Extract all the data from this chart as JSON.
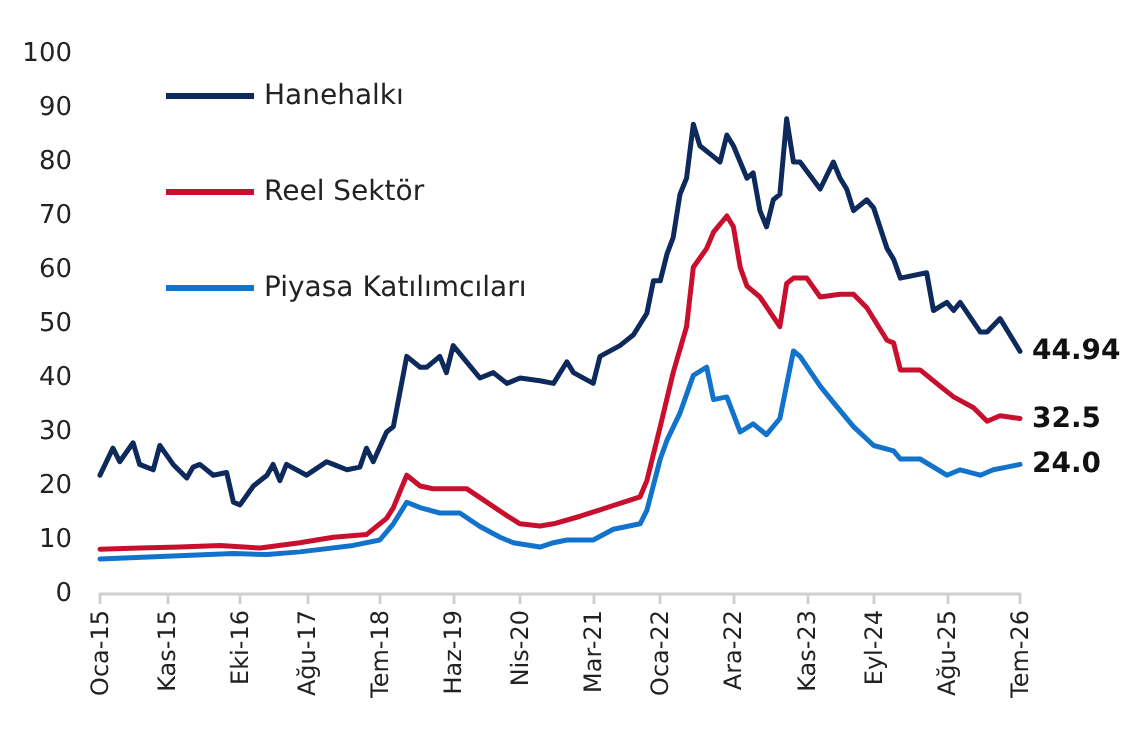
{
  "chart_data": {
    "type": "line",
    "xlim": [
      "2015-01",
      "2026-07"
    ],
    "xticks": [
      {
        "value": "2015-01",
        "label": "Oca-15"
      },
      {
        "value": "2015-11",
        "label": "Kas-15"
      },
      {
        "value": "2016-10",
        "label": "Eki-16"
      },
      {
        "value": "2017-08",
        "label": "Ağu-17"
      },
      {
        "value": "2018-07",
        "label": "Tem-18"
      },
      {
        "value": "2019-06",
        "label": "Haz-19"
      },
      {
        "value": "2020-04",
        "label": "Nis-20"
      },
      {
        "value": "2021-03",
        "label": "Mar-21"
      },
      {
        "value": "2022-01",
        "label": "Oca-22"
      },
      {
        "value": "2022-12",
        "label": "Ara-22"
      },
      {
        "value": "2023-11",
        "label": "Kas-23"
      },
      {
        "value": "2024-09",
        "label": "Eyl-24"
      },
      {
        "value": "2025-08",
        "label": "Ağu-25"
      },
      {
        "value": "2026-07",
        "label": "Tem-26"
      }
    ],
    "ylim": [
      0,
      100
    ],
    "yticks": [
      0,
      10,
      20,
      30,
      40,
      50,
      60,
      70,
      80,
      90,
      100
    ],
    "grid": false,
    "legend": "top left",
    "marker": "none",
    "line_style": "solid",
    "series": [
      {
        "name": "Hanehalkı",
        "color": "#0e2a5c",
        "x": [
          "2015-01",
          "2015-03",
          "2015-04",
          "2015-06",
          "2015-07",
          "2015-08",
          "2015-09",
          "2015-10",
          "2015-12",
          "2016-02",
          "2016-03",
          "2016-04",
          "2016-06",
          "2016-08",
          "2016-09",
          "2016-10",
          "2016-12",
          "2017-02",
          "2017-03",
          "2017-04",
          "2017-05",
          "2017-08",
          "2017-11",
          "2017-12",
          "2018-02",
          "2018-04",
          "2018-05",
          "2018-06",
          "2018-08",
          "2018-09",
          "2018-11",
          "2019-01",
          "2019-02",
          "2019-04",
          "2019-05",
          "2019-06",
          "2019-08",
          "2019-10",
          "2019-12",
          "2020-02",
          "2020-04",
          "2020-07",
          "2020-09",
          "2020-11",
          "2020-12",
          "2021-03",
          "2021-04",
          "2021-07",
          "2021-09",
          "2021-11",
          "2021-12",
          "2022-01",
          "2022-02",
          "2022-03",
          "2022-04",
          "2022-05",
          "2022-06",
          "2022-07",
          "2022-09",
          "2022-10",
          "2022-11",
          "2022-12",
          "2023-02",
          "2023-03",
          "2023-04",
          "2023-05",
          "2023-06",
          "2023-07",
          "2023-08",
          "2023-09",
          "2023-10",
          "2024-01",
          "2024-03",
          "2024-04",
          "2024-05",
          "2024-06",
          "2024-08",
          "2024-09",
          "2024-11",
          "2024-12",
          "2025-01",
          "2025-05",
          "2025-06",
          "2025-08",
          "2025-09",
          "2025-10",
          "2026-01",
          "2026-02",
          "2026-04",
          "2026-07"
        ],
        "values": [
          22,
          27,
          24.5,
          28,
          24,
          23.5,
          23,
          27.5,
          24,
          21.5,
          23.5,
          24,
          22,
          22.5,
          17,
          16.5,
          20,
          22,
          24,
          21,
          24,
          22,
          24.5,
          24,
          23,
          23.5,
          27,
          24.5,
          30,
          31,
          44,
          42,
          42,
          44,
          41,
          46,
          43,
          40,
          41,
          39,
          40,
          39.5,
          39,
          43,
          41,
          39,
          44,
          46,
          48,
          52,
          58,
          58,
          63,
          66,
          74,
          77,
          87,
          83,
          81,
          80,
          85,
          83,
          77,
          78,
          71,
          68,
          73,
          74,
          88,
          80,
          80,
          75,
          80,
          77,
          75,
          71,
          73,
          71.5,
          64,
          62,
          58.5,
          59.5,
          52.5,
          54,
          52.5,
          54,
          48.5,
          48.5,
          51,
          44.94
        ]
      },
      {
        "name": "Reel Sektör",
        "color": "#c8102e",
        "x": [
          "2015-01",
          "2015-07",
          "2016-01",
          "2016-07",
          "2017-01",
          "2017-07",
          "2017-12",
          "2018-05",
          "2018-08",
          "2018-09",
          "2018-11",
          "2019-01",
          "2019-03",
          "2019-08",
          "2019-11",
          "2020-02",
          "2020-04",
          "2020-07",
          "2020-09",
          "2021-01",
          "2021-04",
          "2021-07",
          "2021-10",
          "2021-11",
          "2022-01",
          "2022-03",
          "2022-05",
          "2022-06",
          "2022-08",
          "2022-09",
          "2022-11",
          "2022-12",
          "2023-01",
          "2023-02",
          "2023-04",
          "2023-07",
          "2023-08",
          "2023-09",
          "2023-11",
          "2024-01",
          "2024-04",
          "2024-06",
          "2024-08",
          "2024-11",
          "2024-12",
          "2025-01",
          "2025-04",
          "2025-07",
          "2025-09",
          "2025-12",
          "2026-02",
          "2026-04",
          "2026-07"
        ],
        "values": [
          8.3,
          8.5,
          8.7,
          9,
          8.5,
          9.5,
          10.5,
          11,
          14,
          16,
          22,
          20,
          19.5,
          19.5,
          17,
          14.5,
          13,
          12.6,
          13,
          14.4,
          15.6,
          16.8,
          18,
          21,
          31,
          41,
          49.5,
          60.5,
          64,
          67,
          70,
          68,
          60.5,
          57,
          55,
          49.5,
          57.5,
          58.5,
          58.5,
          55,
          55.5,
          55.5,
          53,
          47,
          46.5,
          41.5,
          41.5,
          38.5,
          36.5,
          34.5,
          32,
          33,
          32.5
        ]
      },
      {
        "name": "Piyasa Katılımcıları",
        "color": "#1273cc",
        "x": [
          "2015-01",
          "2015-11",
          "2016-09",
          "2017-02",
          "2017-07",
          "2018-03",
          "2018-07",
          "2018-09",
          "2018-11",
          "2019-01",
          "2019-04",
          "2019-07",
          "2019-10",
          "2020-01",
          "2020-03",
          "2020-07",
          "2020-09",
          "2020-11",
          "2021-03",
          "2021-06",
          "2021-10",
          "2021-11",
          "2022-01",
          "2022-02",
          "2022-04",
          "2022-06",
          "2022-08",
          "2022-09",
          "2022-11",
          "2023-01",
          "2023-03",
          "2023-05",
          "2023-07",
          "2023-09",
          "2023-10",
          "2024-01",
          "2024-03",
          "2024-06",
          "2024-09",
          "2024-12",
          "2025-01",
          "2025-04",
          "2025-08",
          "2025-10",
          "2026-01",
          "2026-03",
          "2026-05",
          "2026-07"
        ],
        "values": [
          6.5,
          7,
          7.5,
          7.3,
          7.8,
          9,
          10,
          13,
          17,
          16,
          15,
          15,
          12.5,
          10.5,
          9.5,
          8.7,
          9.5,
          10,
          10,
          12,
          13,
          15.5,
          25,
          28.5,
          33.5,
          40.5,
          42,
          36,
          36.5,
          30,
          31.5,
          29.5,
          32.5,
          45,
          44,
          38.5,
          35.5,
          31,
          27.5,
          26.5,
          25,
          25,
          22,
          23,
          22,
          23,
          23.5,
          24.0
        ]
      }
    ],
    "annotations": [
      {
        "text": "44.94",
        "x": "2026-07",
        "y": 44.94
      },
      {
        "text": "32.5",
        "x": "2026-07",
        "y": 32.5
      },
      {
        "text": "24.0",
        "x": "2026-07",
        "y": 24.0
      }
    ]
  }
}
